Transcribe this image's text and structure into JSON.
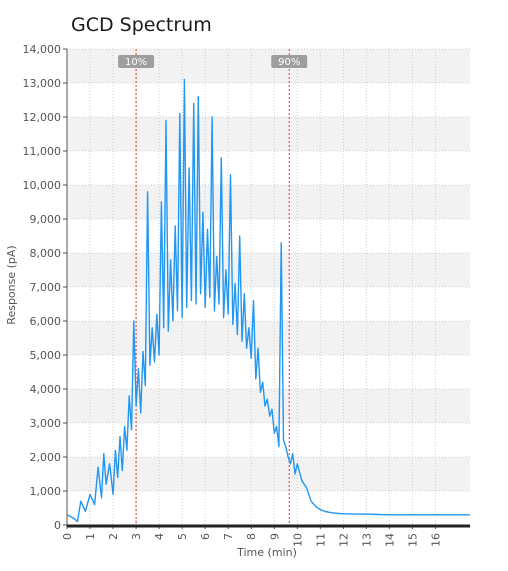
{
  "chart_data": {
    "type": "line",
    "title": "GCD Spectrum",
    "xlabel": "Time (min)",
    "ylabel": "Response (pA)",
    "xlim": [
      0,
      17.5
    ],
    "ylim": [
      0,
      14000
    ],
    "x_ticks": [
      "0",
      "1",
      "2",
      "3",
      "4",
      "5",
      "6",
      "7",
      "8",
      "9",
      "10",
      "11",
      "12",
      "13",
      "14",
      "15",
      "16"
    ],
    "x_tick_values": [
      0,
      1,
      2,
      3,
      4,
      5,
      6,
      7,
      8,
      9,
      10,
      11,
      12,
      13,
      14,
      15,
      16
    ],
    "y_ticks": [
      "0",
      "1,000",
      "2,000",
      "3,000",
      "4,000",
      "5,000",
      "6,000",
      "7,000",
      "8,000",
      "9,000",
      "10,000",
      "11,000",
      "12,000",
      "13,000",
      "14,000"
    ],
    "y_tick_values": [
      0,
      1000,
      2000,
      3000,
      4000,
      5000,
      6000,
      7000,
      8000,
      9000,
      10000,
      11000,
      12000,
      13000,
      14000
    ],
    "grid": true,
    "line_color": "#2196f3",
    "markers": [
      {
        "label": "10%",
        "x": 3.0,
        "color": "#e53935"
      },
      {
        "label": "90%",
        "x": 9.65,
        "color": "#e53935"
      }
    ],
    "series": [
      {
        "x": [
          0,
          0.3,
          0.45,
          0.6,
          0.8,
          1.0,
          1.2,
          1.35,
          1.5,
          1.6,
          1.7,
          1.85,
          2.0,
          2.1,
          2.2,
          2.3,
          2.4,
          2.5,
          2.6,
          2.7,
          2.8,
          2.9,
          3.0,
          3.1,
          3.2,
          3.3,
          3.4,
          3.5,
          3.6,
          3.7,
          3.8,
          3.9,
          4.0,
          4.1,
          4.2,
          4.3,
          4.4,
          4.5,
          4.6,
          4.7,
          4.8,
          4.9,
          5.0,
          5.1,
          5.2,
          5.3,
          5.4,
          5.5,
          5.6,
          5.7,
          5.8,
          5.9,
          6.0,
          6.1,
          6.2,
          6.3,
          6.4,
          6.5,
          6.6,
          6.7,
          6.8,
          6.9,
          7.0,
          7.1,
          7.2,
          7.3,
          7.4,
          7.5,
          7.6,
          7.7,
          7.8,
          7.9,
          8.0,
          8.1,
          8.2,
          8.3,
          8.4,
          8.5,
          8.6,
          8.7,
          8.8,
          8.9,
          9.0,
          9.1,
          9.2,
          9.3,
          9.4,
          9.5,
          9.6,
          9.7,
          9.8,
          9.9,
          10.0,
          10.2,
          10.4,
          10.6,
          10.8,
          11.0,
          11.2,
          11.5,
          11.8,
          12.1,
          12.5,
          13.0,
          13.5,
          14.0,
          15.0,
          16.0,
          17.0,
          17.5
        ],
        "y": [
          300,
          200,
          100,
          700,
          400,
          900,
          600,
          1700,
          800,
          2100,
          1200,
          1800,
          900,
          2200,
          1400,
          2600,
          1600,
          2900,
          2200,
          3800,
          2800,
          6000,
          3500,
          4600,
          3300,
          5100,
          4100,
          9800,
          4700,
          5800,
          4800,
          6200,
          5000,
          9500,
          5800,
          11900,
          5700,
          7800,
          6000,
          8800,
          6300,
          12100,
          6100,
          13100,
          6400,
          10500,
          6600,
          12400,
          6500,
          12600,
          6800,
          9200,
          6400,
          8700,
          6700,
          12000,
          6300,
          7900,
          6500,
          10800,
          6100,
          7500,
          6200,
          10300,
          5900,
          7100,
          5600,
          8500,
          5400,
          6800,
          5200,
          5800,
          4900,
          6600,
          4300,
          5200,
          3900,
          4200,
          3500,
          3700,
          3200,
          3400,
          2700,
          2900,
          2300,
          8300,
          2500,
          2300,
          2000,
          1800,
          2100,
          1500,
          1800,
          1300,
          1100,
          700,
          550,
          450,
          400,
          360,
          340,
          330,
          320,
          320,
          310,
          300,
          300,
          300,
          300,
          300
        ]
      }
    ]
  }
}
